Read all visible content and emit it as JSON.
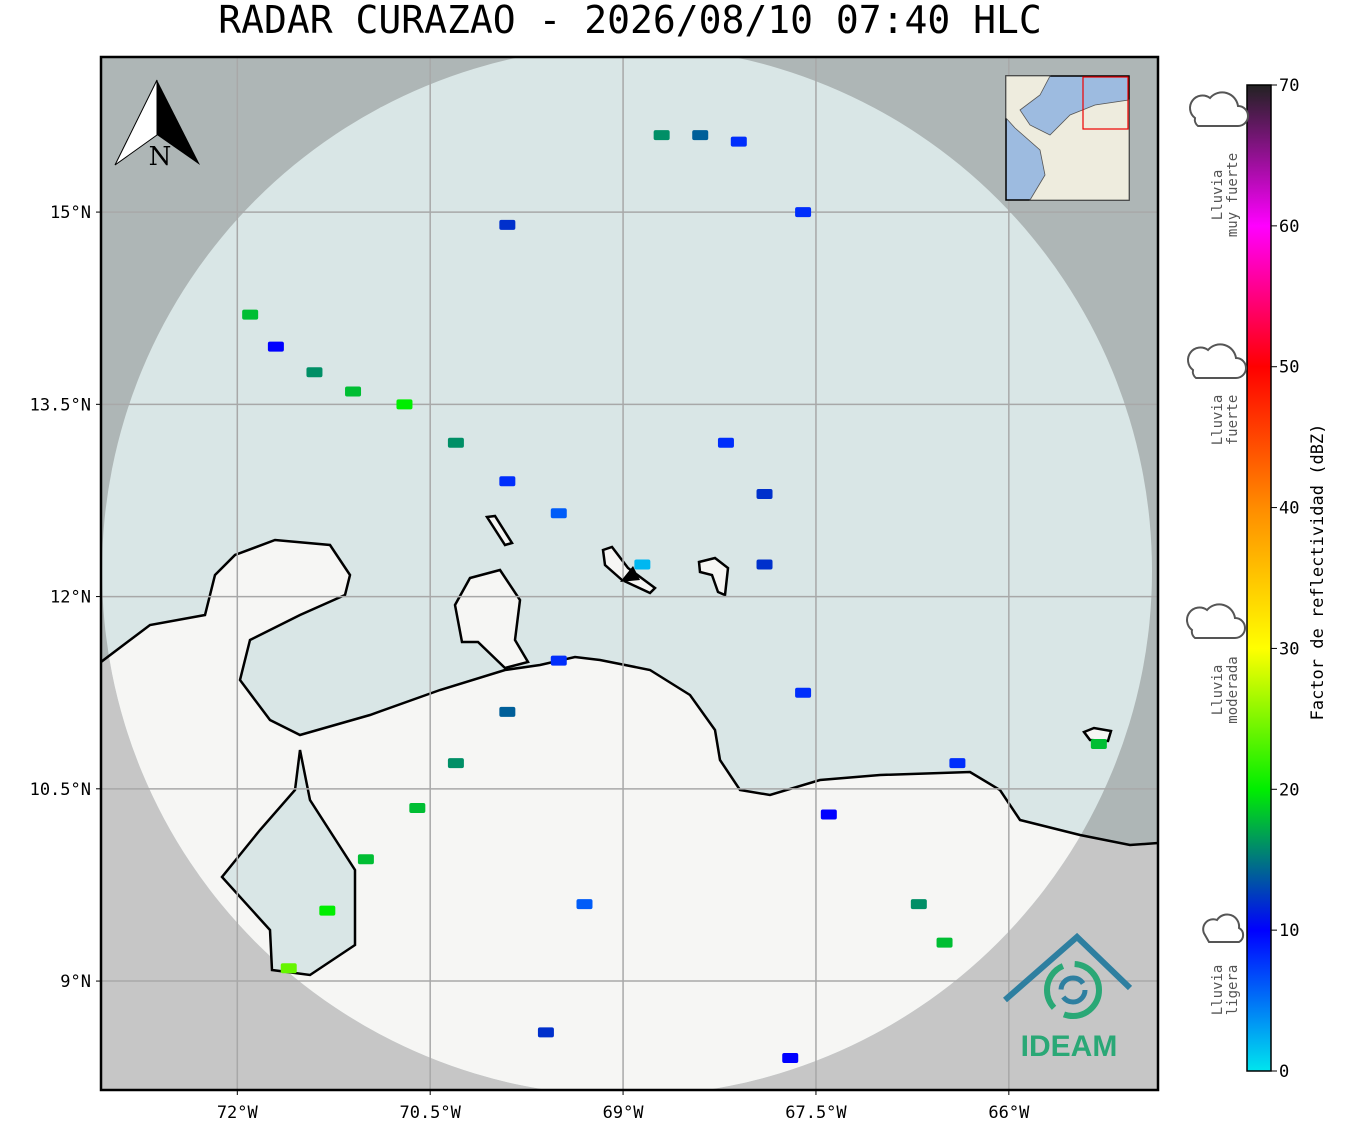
{
  "title": "RADAR CURAZAO - 2026/08/10 07:40 HLC",
  "map": {
    "xlim": [
      -73.06,
      -64.84
    ],
    "ylim": [
      8.15,
      16.21
    ],
    "xticks": [
      {
        "value": -72,
        "label": "72°W"
      },
      {
        "value": -70.5,
        "label": "70.5°W"
      },
      {
        "value": -69,
        "label": "69°W"
      },
      {
        "value": -67.5,
        "label": "67.5°W"
      },
      {
        "value": -66,
        "label": "66°W"
      }
    ],
    "yticks": [
      {
        "value": 15,
        "label": "15°N"
      },
      {
        "value": 13.5,
        "label": "13.5°N"
      },
      {
        "value": 12,
        "label": "12°N"
      },
      {
        "value": 10.5,
        "label": "10.5°N"
      },
      {
        "value": 9,
        "label": "9°N"
      }
    ],
    "grid": true,
    "north_label": "N",
    "logo_text": "IDEAM",
    "echoes": [
      [
        -68.7,
        15.6,
        16
      ],
      [
        -68.4,
        15.6,
        14
      ],
      [
        -68.1,
        15.55,
        8
      ],
      [
        -67.6,
        15.0,
        8
      ],
      [
        -69.9,
        14.9,
        12
      ],
      [
        -71.9,
        14.2,
        18
      ],
      [
        -71.7,
        13.95,
        10
      ],
      [
        -71.4,
        13.75,
        16
      ],
      [
        -71.1,
        13.6,
        18
      ],
      [
        -70.7,
        13.5,
        20
      ],
      [
        -70.3,
        13.2,
        16
      ],
      [
        -69.9,
        12.9,
        8
      ],
      [
        -69.5,
        12.65,
        6
      ],
      [
        -68.85,
        12.25,
        2
      ],
      [
        -69.5,
        11.5,
        8
      ],
      [
        -69.9,
        11.1,
        14
      ],
      [
        -70.3,
        10.7,
        16
      ],
      [
        -70.6,
        10.35,
        18
      ],
      [
        -71.0,
        9.95,
        18
      ],
      [
        -71.3,
        9.55,
        20
      ],
      [
        -71.6,
        9.1,
        24
      ],
      [
        -67.9,
        12.25,
        12
      ],
      [
        -67.6,
        11.25,
        8
      ],
      [
        -66.4,
        10.7,
        8
      ],
      [
        -65.3,
        10.85,
        18
      ],
      [
        -67.4,
        10.3,
        10
      ],
      [
        -66.7,
        9.6,
        16
      ],
      [
        -66.5,
        9.3,
        18
      ],
      [
        -69.3,
        9.6,
        6
      ],
      [
        -69.6,
        8.6,
        12
      ],
      [
        -67.7,
        8.4,
        10
      ],
      [
        -68.2,
        13.2,
        8
      ],
      [
        -67.9,
        12.8,
        12
      ]
    ]
  },
  "colorbar": {
    "label": "Factor de reflectividad (dBZ)",
    "lim": [
      0,
      70
    ],
    "ticks": [
      0,
      10,
      20,
      30,
      40,
      50,
      60,
      70
    ],
    "colors": [
      "#00e5ee",
      "#0000ff",
      "#00ee00",
      "#ffff00",
      "#ff8c00",
      "#ff0000",
      "#ff00ff",
      "#222222"
    ]
  },
  "rain_levels": [
    {
      "lines": [
        "Lluvia",
        "muy fuerte"
      ]
    },
    {
      "lines": [
        "Lluvia",
        "fuerte"
      ]
    },
    {
      "lines": [
        "Lluvia",
        "moderada"
      ]
    },
    {
      "lines": [
        "Lluvia",
        "ligera"
      ]
    }
  ]
}
